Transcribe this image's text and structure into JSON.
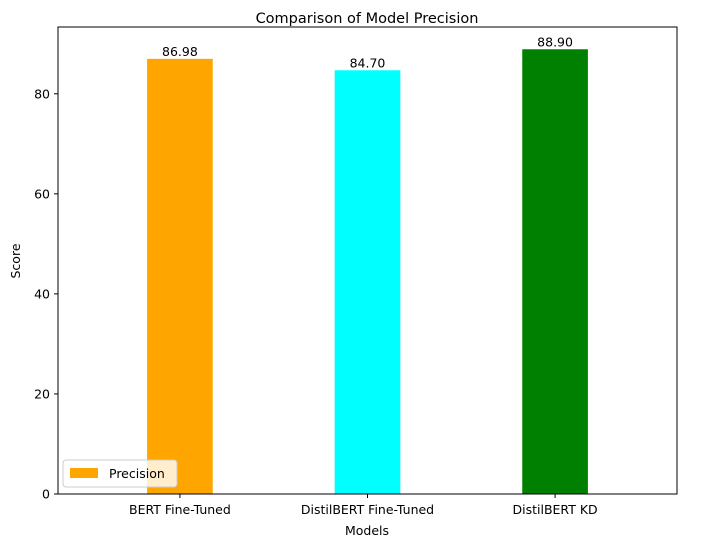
{
  "chart_data": {
    "type": "bar",
    "title": "Comparison of Model Precision",
    "xlabel": "Models",
    "ylabel": "Score",
    "categories": [
      "BERT Fine-Tuned",
      "DistilBERT Fine-Tuned",
      "DistilBERT KD"
    ],
    "series": [
      {
        "name": "Precision",
        "values": [
          86.98,
          84.7,
          88.9
        ],
        "value_labels": [
          "86.98",
          "84.70",
          "88.90"
        ],
        "colors": [
          "#ffa500",
          "#00ffff",
          "#008000"
        ]
      }
    ],
    "ylim": [
      0,
      93.35
    ],
    "yticks": [
      0,
      20,
      40,
      60,
      80
    ],
    "grid": false,
    "legend": {
      "placement": "lower-left",
      "entries": [
        "Precision"
      ],
      "swatch_color": "#ffa500"
    }
  }
}
